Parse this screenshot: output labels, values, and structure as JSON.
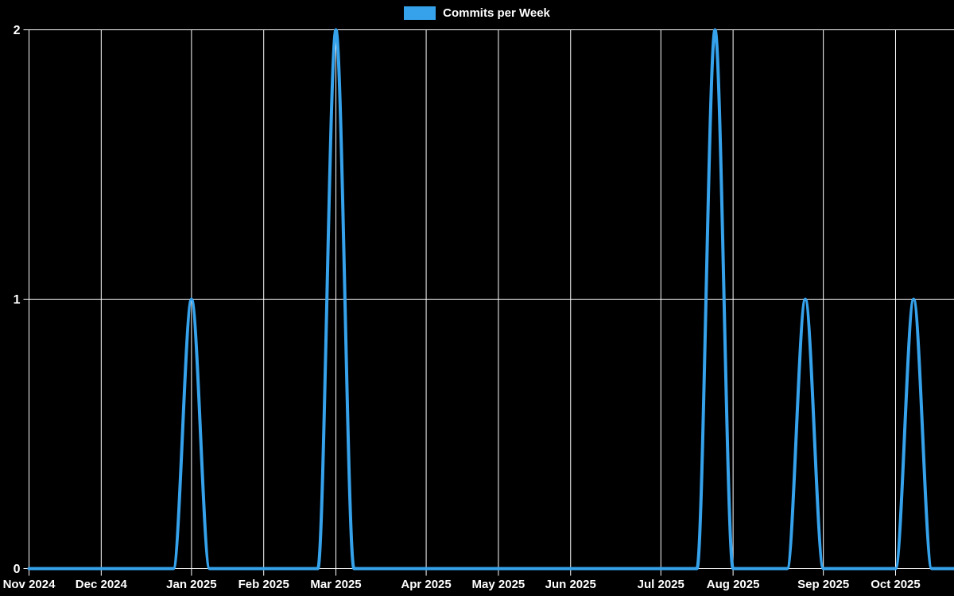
{
  "chart_data": {
    "type": "line",
    "series": [
      {
        "name": "Commits per Week",
        "color": "#36a2eb",
        "values": [
          0,
          0,
          0,
          0,
          0,
          0,
          0,
          0,
          0,
          1,
          0,
          0,
          0,
          0,
          0,
          0,
          0,
          2,
          0,
          0,
          0,
          0,
          0,
          0,
          0,
          0,
          0,
          0,
          0,
          0,
          0,
          0,
          0,
          0,
          0,
          0,
          0,
          0,
          2,
          0,
          0,
          0,
          0,
          1,
          0,
          0,
          0,
          0,
          0,
          1,
          0,
          0
        ]
      }
    ],
    "x_axis": {
      "unit": "week",
      "total_weeks": 52,
      "tick_labels": [
        "Nov 2024",
        "Dec 2024",
        "Jan 2025",
        "Feb 2025",
        "Mar 2025",
        "Apr 2025",
        "May 2025",
        "Jun 2025",
        "Jul 2025",
        "Aug 2025",
        "Sep 2025",
        "Oct 2025"
      ],
      "tick_week_indices": [
        0,
        4,
        9,
        13,
        17,
        22,
        26,
        30,
        35,
        39,
        44,
        48
      ]
    },
    "y_axis": {
      "ticks": [
        0,
        1,
        2
      ],
      "range": [
        0,
        2
      ]
    },
    "legend_position": "top-center",
    "grid": true,
    "colors": {
      "background": "#000000",
      "grid": "#ffffff",
      "text": "#ffffff"
    }
  }
}
